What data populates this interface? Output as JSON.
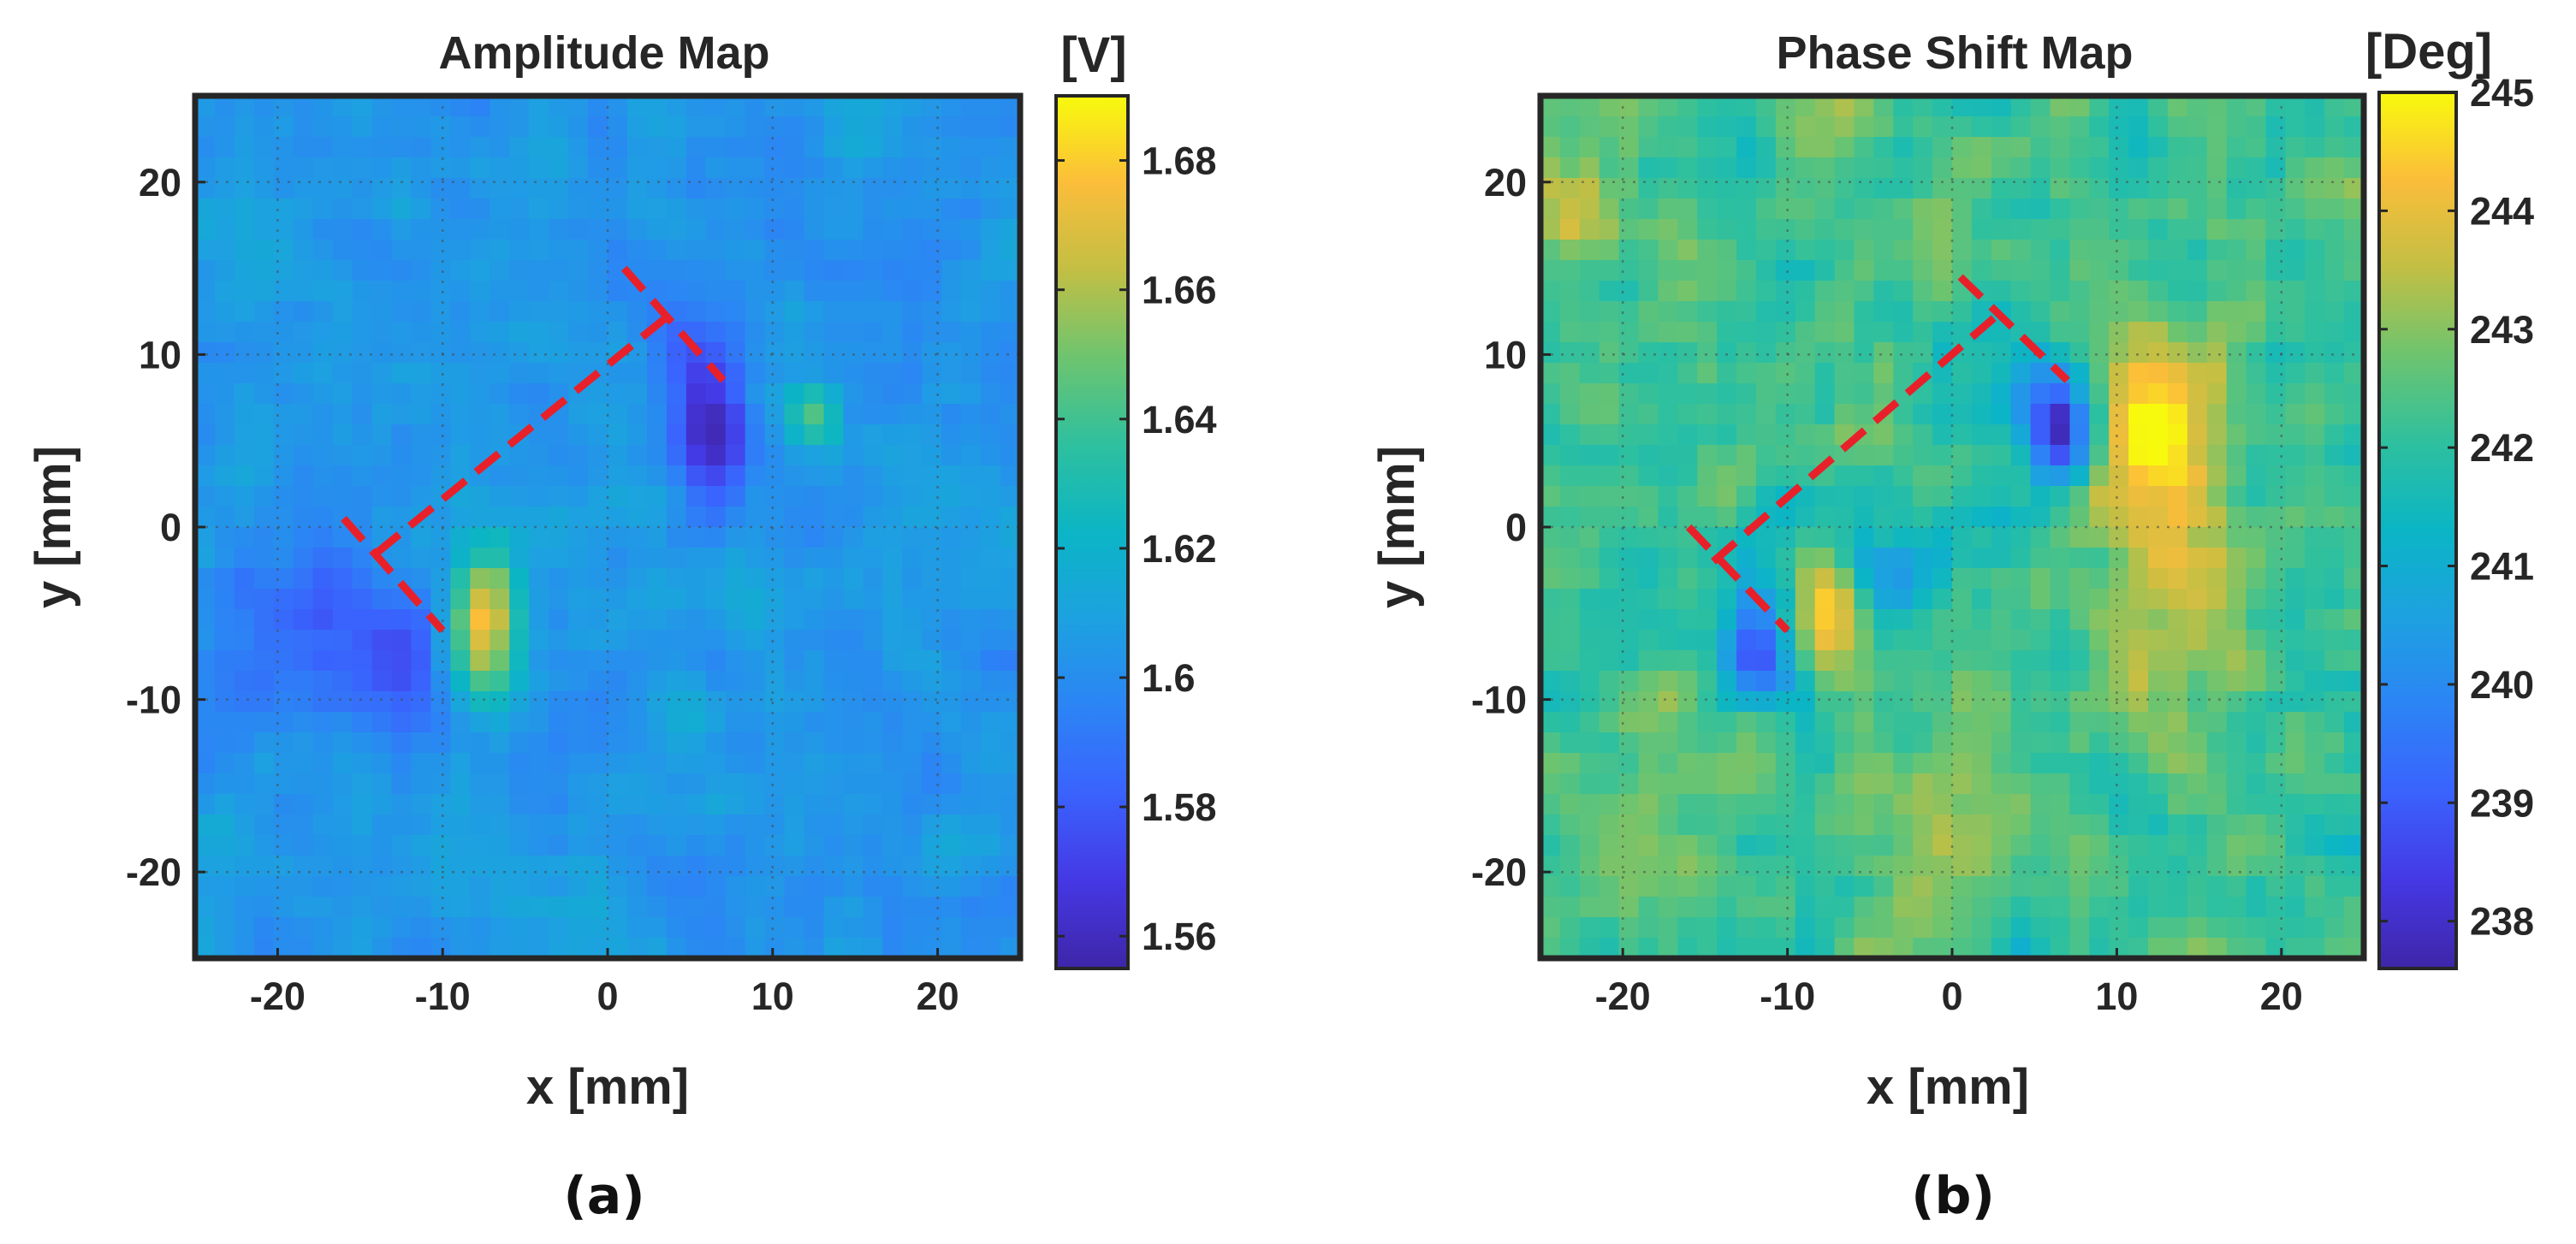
{
  "chart_data": [
    {
      "type": "heatmap",
      "title": "Amplitude Map",
      "xlabel": "x [mm]",
      "ylabel": "y [mm]",
      "panel_label": "(a)",
      "colorbar_label": "[V]",
      "xlim": [
        -25,
        25
      ],
      "ylim": [
        -25,
        25
      ],
      "xticks": [
        -20,
        -10,
        0,
        10,
        20
      ],
      "yticks": [
        -20,
        -10,
        0,
        10,
        20
      ],
      "xtick_labels": [
        "-20",
        "-10",
        "0",
        "10",
        "20"
      ],
      "ytick_labels": [
        "-20",
        "-10",
        "0",
        "10",
        "20"
      ],
      "clim": [
        1.555,
        1.69
      ],
      "colorbar_ticks": [
        1.56,
        1.58,
        1.6,
        1.62,
        1.64,
        1.66,
        1.68
      ],
      "colorbar_tick_labels": [
        "1.56",
        "1.58",
        "1.6",
        "1.62",
        "1.64",
        "1.66",
        "1.68"
      ],
      "grid": true,
      "colormap": "parula",
      "background_value": 1.605,
      "features": [
        {
          "name": "dark-spot-upper",
          "x": 6.5,
          "y": 5.5,
          "sx": 1.6,
          "sy": 3.0,
          "amp": -0.045
        },
        {
          "name": "dark-spot-left",
          "x": -13,
          "y": -7.5,
          "sx": 2.5,
          "sy": 3.0,
          "amp": -0.03
        },
        {
          "name": "dark-region-far-left",
          "x": -19,
          "y": -6.5,
          "sx": 2.5,
          "sy": 4.0,
          "amp": -0.02
        },
        {
          "name": "bright-spot",
          "x": -7.5,
          "y": -5.5,
          "sx": 1.6,
          "sy": 3.0,
          "amp": 0.075
        },
        {
          "name": "green-spot",
          "x": 12.5,
          "y": 6.5,
          "sx": 1.0,
          "sy": 1.2,
          "amp": 0.035
        },
        {
          "name": "dark-trail",
          "x": 5,
          "y": 10,
          "sx": 2.0,
          "sy": 2.0,
          "amp": -0.015
        }
      ],
      "annotation": {
        "color": "#e8202a",
        "segments": [
          {
            "x1": 1,
            "y1": 15,
            "x2": 7,
            "y2": 8.5
          },
          {
            "x1": -16,
            "y1": 0.5,
            "x2": -10,
            "y2": -6
          },
          {
            "x1": -14,
            "y1": -1.5,
            "x2": 4,
            "y2": 12.5
          }
        ]
      }
    },
    {
      "type": "heatmap",
      "title": "Phase Shift Map",
      "xlabel": "x [mm]",
      "ylabel": "y [mm]",
      "panel_label": "(b)",
      "colorbar_label": "[Deg]",
      "xlim": [
        -25,
        25
      ],
      "ylim": [
        -25,
        25
      ],
      "xticks": [
        -20,
        -10,
        0,
        10,
        20
      ],
      "yticks": [
        -20,
        -10,
        0,
        10,
        20
      ],
      "xtick_labels": [
        "-20",
        "-10",
        "0",
        "10",
        "20"
      ],
      "ytick_labels": [
        "-20",
        "-10",
        "0",
        "10",
        "20"
      ],
      "clim": [
        237.6,
        245.0
      ],
      "colorbar_ticks": [
        238,
        239,
        240,
        241,
        242,
        243,
        244,
        245
      ],
      "colorbar_tick_labels": [
        "238",
        "239",
        "240",
        "241",
        "242",
        "243",
        "244",
        "245"
      ],
      "grid": true,
      "colormap": "parula",
      "background_value": 242.3,
      "features": [
        {
          "name": "dark-spot-upper",
          "x": 6.5,
          "y": 5.5,
          "sx": 1.4,
          "sy": 2.2,
          "amp": -4.5
        },
        {
          "name": "dark-spot-left",
          "x": -12,
          "y": -7,
          "sx": 1.4,
          "sy": 2.2,
          "amp": -3.5
        },
        {
          "name": "blue-arc",
          "x": -4,
          "y": -3,
          "sx": 2.5,
          "sy": 2.0,
          "amp": -1.8
        },
        {
          "name": "blue-arc-2",
          "x": 2,
          "y": 0,
          "sx": 2.0,
          "sy": 2.0,
          "amp": -1.2
        },
        {
          "name": "blue-trail",
          "x": 3,
          "y": 9,
          "sx": 2.5,
          "sy": 2.5,
          "amp": -1.0
        },
        {
          "name": "bright-spot",
          "x": -7.5,
          "y": -5,
          "sx": 1.4,
          "sy": 2.2,
          "amp": 2.5
        },
        {
          "name": "yellow-region-right",
          "x": 12.5,
          "y": 6,
          "sx": 2.5,
          "sy": 3.0,
          "amp": 2.5
        },
        {
          "name": "yellow-band-right",
          "x": 13,
          "y": -3,
          "sx": 3.0,
          "sy": 6.0,
          "amp": 1.2
        },
        {
          "name": "yellow-region-bottom",
          "x": -1,
          "y": -17,
          "sx": 4.0,
          "sy": 3.0,
          "amp": 1.0
        },
        {
          "name": "orange-spot-top-left",
          "x": -22,
          "y": 18,
          "sx": 2.0,
          "sy": 2.0,
          "amp": 1.3
        },
        {
          "name": "orange-spot-bottom-left",
          "x": -20,
          "y": -19,
          "sx": 2.0,
          "sy": 2.0,
          "amp": 1.2
        }
      ],
      "annotation": {
        "color": "#e8202a",
        "segments": [
          {
            "x1": 0.5,
            "y1": 14.5,
            "x2": 7,
            "y2": 8.5
          },
          {
            "x1": -16,
            "y1": 0,
            "x2": -10,
            "y2": -6
          },
          {
            "x1": -14.5,
            "y1": -2,
            "x2": 3,
            "y2": 12.5
          }
        ]
      }
    }
  ]
}
